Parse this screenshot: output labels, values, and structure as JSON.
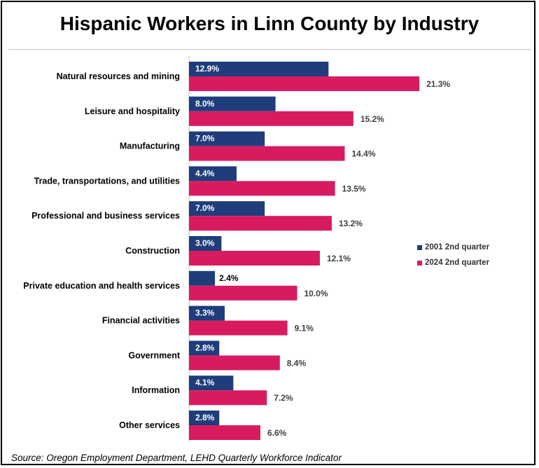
{
  "chart_data": {
    "type": "bar",
    "orientation": "horizontal",
    "title": "Hispanic Workers in Linn County by Industry",
    "categories": [
      "Natural resources and mining",
      "Leisure and hospitality",
      "Manufacturing",
      "Trade, transportations, and utilities",
      "Professional and business services",
      "Construction",
      "Private education and health services",
      "Financial activities",
      "Government",
      "Information",
      "Other services"
    ],
    "series": [
      {
        "name": "2001 2nd quarter",
        "color": "#1f3d7a",
        "values": [
          12.9,
          8.0,
          7.0,
          4.4,
          7.0,
          3.0,
          2.4,
          3.3,
          2.8,
          4.1,
          2.8
        ],
        "labels": [
          "12.9%",
          "8.0%",
          "7.0%",
          "4.4%",
          "7.0%",
          "3.0%",
          "2.4%",
          "3.3%",
          "2.8%",
          "4.1%",
          "2.8%"
        ]
      },
      {
        "name": "2024 2nd quarter",
        "color": "#d81b60",
        "values": [
          21.3,
          15.2,
          14.4,
          13.5,
          13.2,
          12.1,
          10.0,
          9.1,
          8.4,
          7.2,
          6.6
        ],
        "labels": [
          "21.3%",
          "15.2%",
          "14.4%",
          "13.5%",
          "13.2%",
          "12.1%",
          "10.0%",
          "9.1%",
          "8.4%",
          "7.2%",
          "6.6%"
        ]
      }
    ],
    "xlim": [
      0,
      25
    ],
    "grid": false,
    "legend_position": "right",
    "source": "Source: Oregon Employment Department, LEHD Quarterly Workforce Indicator"
  }
}
